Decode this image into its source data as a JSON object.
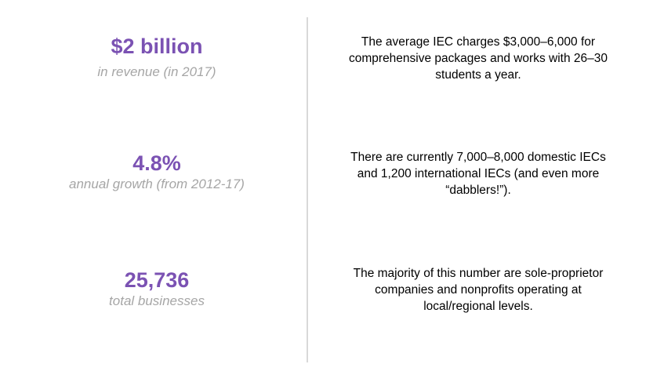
{
  "stats": [
    {
      "value": "$2 billion",
      "caption": "in revenue (in 2017)",
      "description": "The average IEC charges $3,000–6,000 for comprehensive packages and works with 26–30 students a year."
    },
    {
      "value": "4.8%",
      "caption": "annual growth (from 2012-17)",
      "description": "There are currently 7,000–8,000 domestic IECs and 1,200 international IECs (and even more “dabblers!”)."
    },
    {
      "value": "25,736",
      "caption": "total businesses",
      "description": "The majority of this number are sole-proprietor companies and nonprofits operating at local/regional levels."
    }
  ],
  "colors": {
    "accent": "#7b52b3",
    "caption": "#a6a6a6",
    "divider": "#d9d9d9"
  }
}
